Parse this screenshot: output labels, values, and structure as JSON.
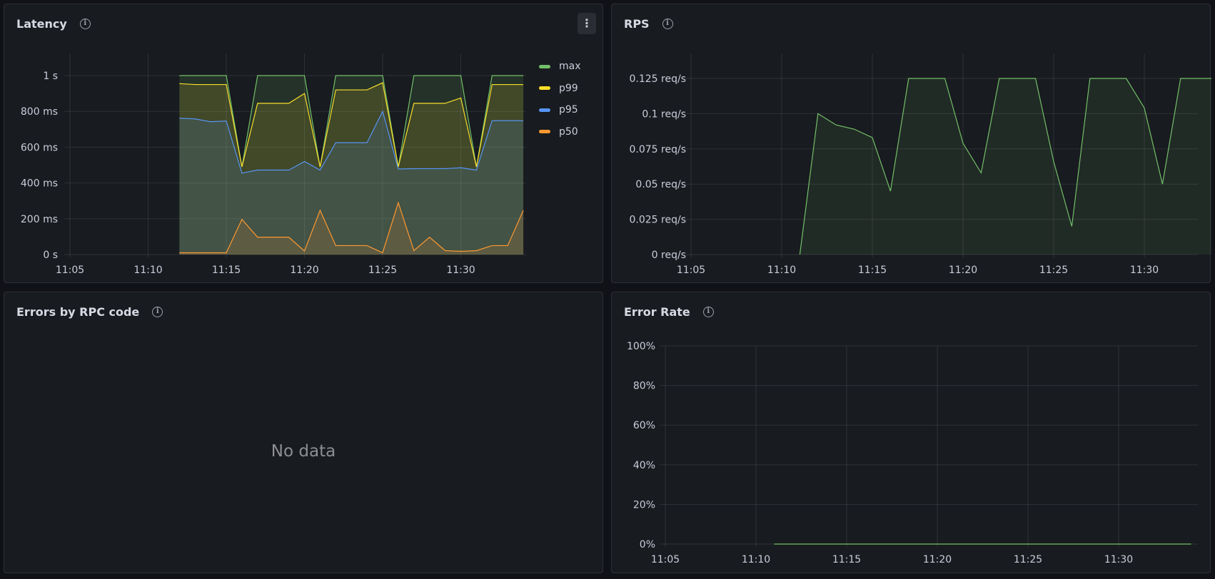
{
  "panels": {
    "latency": {
      "title": "Latency",
      "menu_icon": "kebab-menu-icon",
      "info_icon": "info-icon"
    },
    "rps": {
      "title": "RPS",
      "info_icon": "info-icon"
    },
    "errors": {
      "title": "Errors by RPC code",
      "info_icon": "info-icon",
      "empty_text": "No data"
    },
    "error_rate": {
      "title": "Error Rate",
      "info_icon": "info-icon"
    }
  },
  "chart_data": [
    {
      "id": "latency",
      "type": "area",
      "title": "Latency",
      "x_ticks": [
        "11:05",
        "11:10",
        "11:15",
        "11:20",
        "11:25",
        "11:30"
      ],
      "y_ticks": [
        {
          "value": 0,
          "label": "0 s"
        },
        {
          "value": 200,
          "label": "200 ms"
        },
        {
          "value": 400,
          "label": "400 ms"
        },
        {
          "value": 600,
          "label": "600 ms"
        },
        {
          "value": 800,
          "label": "800 ms"
        },
        {
          "value": 1000,
          "label": "1 s"
        }
      ],
      "ylim": [
        0,
        1100
      ],
      "y_unit": "ms",
      "grid": true,
      "legend": "right",
      "x": [
        "11:12",
        "11:13",
        "11:14",
        "11:15",
        "11:16",
        "11:17",
        "11:18",
        "11:19",
        "11:20",
        "11:21",
        "11:22",
        "11:23",
        "11:24",
        "11:25",
        "11:26",
        "11:27",
        "11:28",
        "11:29",
        "11:30",
        "11:31",
        "11:32",
        "11:33",
        "11:34"
      ],
      "series": [
        {
          "name": "max",
          "color": "#73bf69",
          "values": [
            1000,
            1000,
            1000,
            1000,
            490,
            1000,
            1000,
            1000,
            1000,
            490,
            1000,
            1000,
            1000,
            1000,
            490,
            1000,
            1000,
            1000,
            1000,
            490,
            1000,
            1000,
            1000
          ]
        },
        {
          "name": "p99",
          "color": "#fade2a",
          "values": [
            955,
            950,
            950,
            950,
            490,
            845,
            845,
            845,
            900,
            490,
            920,
            920,
            920,
            960,
            490,
            845,
            845,
            845,
            875,
            490,
            950,
            950,
            950
          ]
        },
        {
          "name": "p95",
          "color": "#5794f2",
          "values": [
            762,
            758,
            742,
            746,
            455,
            472,
            472,
            472,
            520,
            472,
            625,
            625,
            625,
            800,
            478,
            480,
            480,
            480,
            485,
            472,
            748,
            748,
            748
          ]
        },
        {
          "name": "p50",
          "color": "#ff9830",
          "values": [
            10,
            10,
            10,
            10,
            197,
            97,
            97,
            97,
            20,
            247,
            50,
            50,
            50,
            10,
            290,
            22,
            97,
            22,
            18,
            22,
            50,
            50,
            247
          ]
        }
      ]
    },
    {
      "id": "rps",
      "type": "area",
      "title": "RPS",
      "x_ticks": [
        "11:05",
        "11:10",
        "11:15",
        "11:20",
        "11:25",
        "11:30"
      ],
      "y_ticks": [
        {
          "value": 0,
          "label": "0 req/s"
        },
        {
          "value": 0.025,
          "label": "0.025 req/s"
        },
        {
          "value": 0.05,
          "label": "0.05 req/s"
        },
        {
          "value": 0.075,
          "label": "0.075 req/s"
        },
        {
          "value": 0.1,
          "label": "0.1 req/s"
        },
        {
          "value": 0.125,
          "label": "0.125 req/s"
        }
      ],
      "ylim": [
        0,
        0.135
      ],
      "y_unit": "req/s",
      "grid": true,
      "x": [
        "11:11",
        "11:12",
        "11:13",
        "11:14",
        "11:15",
        "11:16",
        "11:17",
        "11:18",
        "11:19",
        "11:20",
        "11:21",
        "11:22",
        "11:23",
        "11:24",
        "11:25",
        "11:26",
        "11:27",
        "11:28",
        "11:29",
        "11:30",
        "11:31",
        "11:32",
        "11:33",
        "11:34"
      ],
      "series": [
        {
          "color": "#73bf69",
          "values": [
            0,
            0.1,
            0.092,
            0.089,
            0.083,
            0.045,
            0.125,
            0.125,
            0.125,
            0.079,
            0.058,
            0.125,
            0.125,
            0.125,
            0.066,
            0.02,
            0.125,
            0.125,
            0.125,
            0.104,
            0.05,
            0.125,
            0.125,
            0.125
          ]
        }
      ]
    },
    {
      "id": "error_rate",
      "type": "line",
      "title": "Error Rate",
      "x_ticks": [
        "11:05",
        "11:10",
        "11:15",
        "11:20",
        "11:25",
        "11:30"
      ],
      "y_ticks": [
        {
          "value": 0,
          "label": "0%"
        },
        {
          "value": 20,
          "label": "20%"
        },
        {
          "value": 40,
          "label": "40%"
        },
        {
          "value": 60,
          "label": "60%"
        },
        {
          "value": 80,
          "label": "80%"
        },
        {
          "value": 100,
          "label": "100%"
        }
      ],
      "ylim": [
        0,
        100
      ],
      "y_unit": "%",
      "grid": true,
      "x": [
        "11:11",
        "11:34"
      ],
      "series": [
        {
          "color": "#73bf69",
          "values": [
            0,
            0
          ]
        }
      ]
    }
  ]
}
